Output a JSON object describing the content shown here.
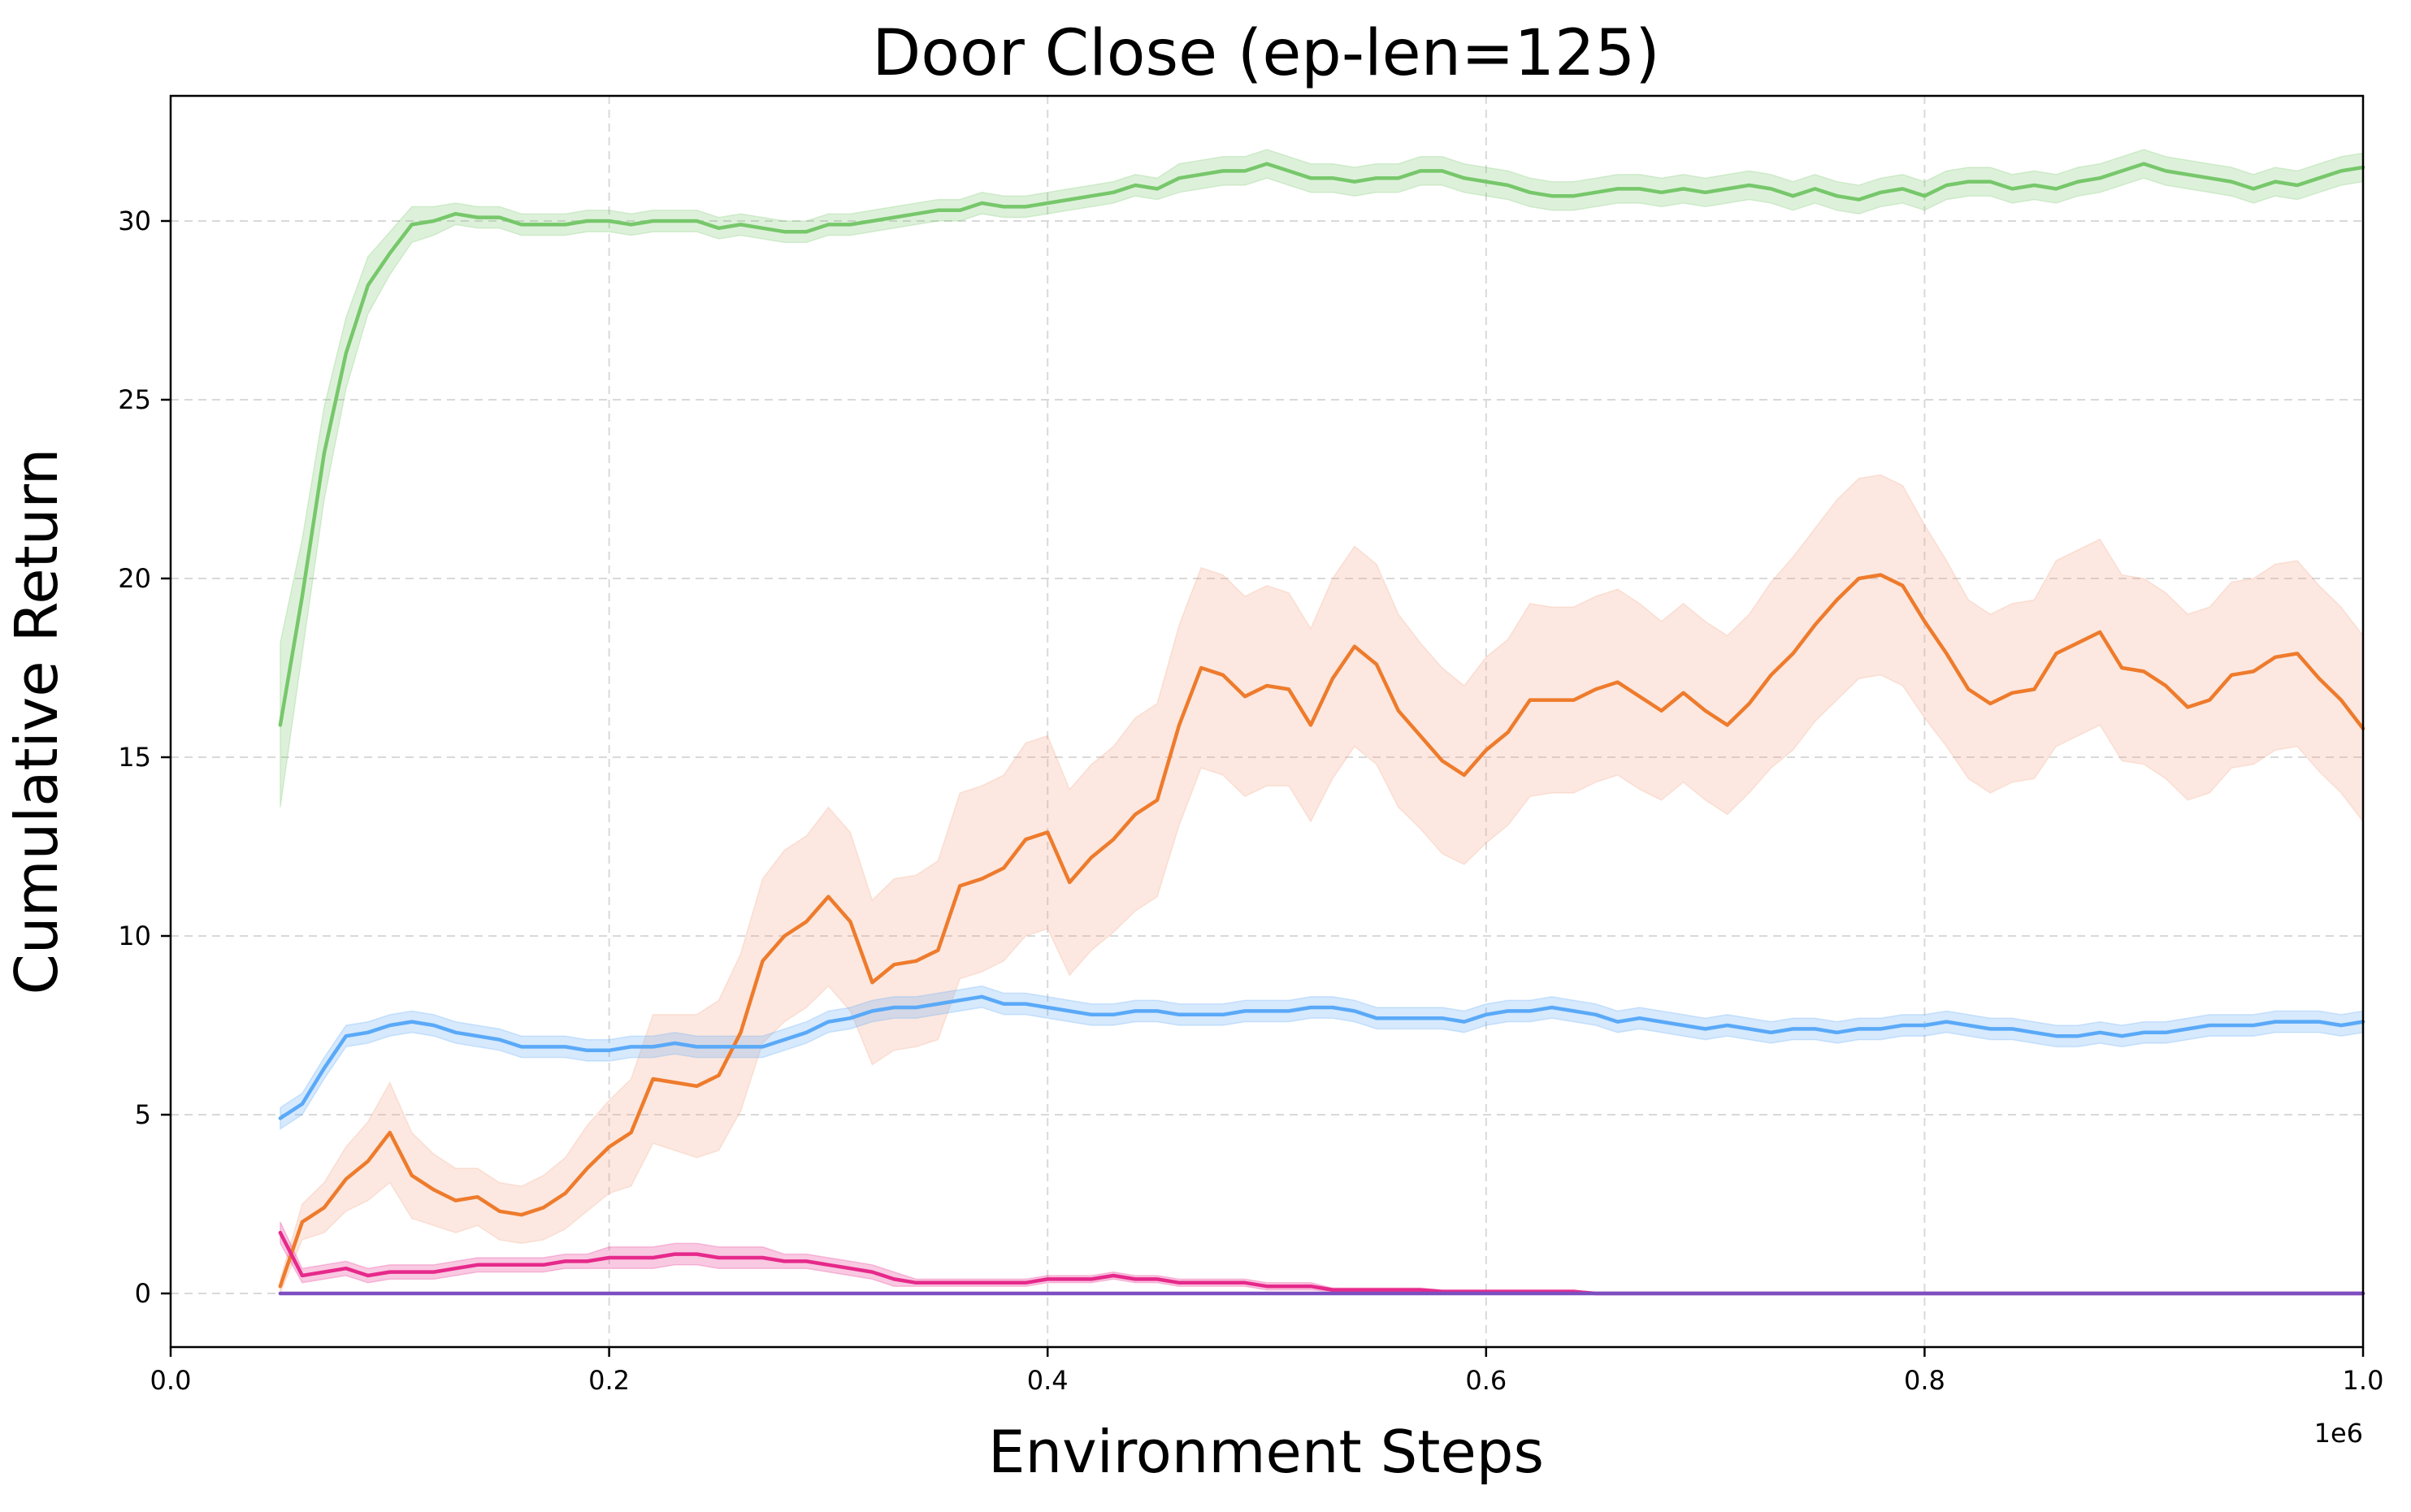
{
  "chart_data": {
    "type": "line",
    "title": "Door Close (ep-len=125)",
    "xlabel": "Environment Steps",
    "ylabel": "Cumulative Return",
    "x_offset_label": "1e6",
    "xlim": [
      0,
      1000000
    ],
    "ylim": [
      -1.5,
      33.5
    ],
    "x_ticks": [
      0,
      200000,
      400000,
      600000,
      800000,
      1000000
    ],
    "x_tick_labels": [
      "0.0",
      "0.2",
      "0.4",
      "0.6",
      "0.8",
      "1.0"
    ],
    "y_ticks": [
      0,
      5,
      10,
      15,
      20,
      25,
      30
    ],
    "y_tick_labels": [
      "0",
      "5",
      "10",
      "15",
      "20",
      "25",
      "30"
    ],
    "grid": true,
    "legend": "none",
    "x": [
      50000,
      60000,
      70000,
      80000,
      90000,
      100000,
      110000,
      120000,
      130000,
      140000,
      150000,
      160000,
      170000,
      180000,
      190000,
      200000,
      210000,
      220000,
      230000,
      240000,
      250000,
      260000,
      270000,
      280000,
      290000,
      300000,
      310000,
      320000,
      330000,
      340000,
      350000,
      360000,
      370000,
      380000,
      390000,
      400000,
      410000,
      420000,
      430000,
      440000,
      450000,
      460000,
      470000,
      480000,
      490000,
      500000,
      510000,
      520000,
      530000,
      540000,
      550000,
      560000,
      570000,
      580000,
      590000,
      600000,
      610000,
      620000,
      630000,
      640000,
      650000,
      660000,
      670000,
      680000,
      690000,
      700000,
      710000,
      720000,
      730000,
      740000,
      750000,
      760000,
      770000,
      780000,
      790000,
      800000,
      810000,
      820000,
      830000,
      840000,
      850000,
      860000,
      870000,
      880000,
      890000,
      900000,
      910000,
      920000,
      930000,
      940000,
      950000,
      960000,
      970000,
      980000,
      990000,
      1000000
    ],
    "series": [
      {
        "color": "#77c76b",
        "band_color": "#77c76b",
        "values": [
          15.9,
          19.5,
          23.5,
          26.3,
          28.2,
          29.1,
          29.9,
          30.0,
          30.2,
          30.1,
          30.1,
          29.9,
          29.9,
          29.9,
          30.0,
          30.0,
          29.9,
          30.0,
          30.0,
          30.0,
          29.8,
          29.9,
          29.8,
          29.7,
          29.7,
          29.9,
          29.9,
          30.0,
          30.1,
          30.2,
          30.3,
          30.3,
          30.5,
          30.4,
          30.4,
          30.5,
          30.6,
          30.7,
          30.8,
          31.0,
          30.9,
          31.2,
          31.3,
          31.4,
          31.4,
          31.6,
          31.4,
          31.2,
          31.2,
          31.1,
          31.2,
          31.2,
          31.4,
          31.4,
          31.2,
          31.1,
          31.0,
          30.8,
          30.7,
          30.7,
          30.8,
          30.9,
          30.9,
          30.8,
          30.9,
          30.8,
          30.9,
          31.0,
          30.9,
          30.7,
          30.9,
          30.7,
          30.6,
          30.8,
          30.9,
          30.7,
          31.0,
          31.1,
          31.1,
          30.9,
          31.0,
          30.9,
          31.1,
          31.2,
          31.4,
          31.6,
          31.4,
          31.3,
          31.2,
          31.1,
          30.9,
          31.1,
          31.0,
          31.2,
          31.4,
          31.5
        ],
        "band_halfwidth": [
          2.3,
          1.6,
          1.3,
          1.0,
          0.8,
          0.6,
          0.5,
          0.4,
          0.3,
          0.3,
          0.3,
          0.3,
          0.3,
          0.3,
          0.3,
          0.3,
          0.3,
          0.3,
          0.3,
          0.3,
          0.3,
          0.3,
          0.3,
          0.3,
          0.3,
          0.3,
          0.3,
          0.3,
          0.3,
          0.3,
          0.3,
          0.3,
          0.3,
          0.3,
          0.3,
          0.3,
          0.3,
          0.3,
          0.3,
          0.3,
          0.3,
          0.4,
          0.4,
          0.4,
          0.4,
          0.4,
          0.4,
          0.4,
          0.4,
          0.4,
          0.4,
          0.4,
          0.4,
          0.4,
          0.4,
          0.4,
          0.4,
          0.4,
          0.4,
          0.4,
          0.4,
          0.4,
          0.4,
          0.4,
          0.4,
          0.4,
          0.4,
          0.4,
          0.4,
          0.4,
          0.4,
          0.4,
          0.4,
          0.4,
          0.4,
          0.4,
          0.4,
          0.4,
          0.4,
          0.4,
          0.4,
          0.4,
          0.4,
          0.4,
          0.4,
          0.4,
          0.4,
          0.4,
          0.4,
          0.4,
          0.4,
          0.4,
          0.4,
          0.4,
          0.4,
          0.4
        ]
      },
      {
        "color": "#ee7b2c",
        "band_color": "#f4a582",
        "values": [
          0.2,
          2.0,
          2.4,
          3.2,
          3.7,
          4.5,
          3.3,
          2.9,
          2.6,
          2.7,
          2.3,
          2.2,
          2.4,
          2.8,
          3.5,
          4.1,
          4.5,
          6.0,
          5.9,
          5.8,
          6.1,
          7.3,
          9.3,
          10.0,
          10.4,
          11.1,
          10.4,
          8.7,
          9.2,
          9.3,
          9.6,
          11.4,
          11.6,
          11.9,
          12.7,
          12.9,
          11.5,
          12.2,
          12.7,
          13.4,
          13.8,
          15.9,
          17.5,
          17.3,
          16.7,
          17.0,
          16.9,
          15.9,
          17.2,
          18.1,
          17.6,
          16.3,
          15.6,
          14.9,
          14.5,
          15.2,
          15.7,
          16.6,
          16.6,
          16.6,
          16.9,
          17.1,
          16.7,
          16.3,
          16.8,
          16.3,
          15.9,
          16.5,
          17.3,
          17.9,
          18.7,
          19.4,
          20.0,
          20.1,
          19.8,
          18.8,
          17.9,
          16.9,
          16.5,
          16.8,
          16.9,
          17.9,
          18.2,
          18.5,
          17.5,
          17.4,
          17.0,
          16.4,
          16.6,
          17.3,
          17.4,
          17.8,
          17.9,
          17.2,
          16.6,
          15.8
        ],
        "band_halfwidth": [
          0.2,
          0.5,
          0.7,
          0.9,
          1.1,
          1.4,
          1.2,
          1.0,
          0.9,
          0.8,
          0.8,
          0.8,
          0.9,
          1.0,
          1.2,
          1.3,
          1.5,
          1.8,
          1.9,
          2.0,
          2.1,
          2.2,
          2.3,
          2.4,
          2.4,
          2.5,
          2.5,
          2.3,
          2.4,
          2.4,
          2.5,
          2.6,
          2.6,
          2.6,
          2.7,
          2.7,
          2.6,
          2.6,
          2.6,
          2.7,
          2.7,
          2.8,
          2.8,
          2.8,
          2.8,
          2.8,
          2.7,
          2.7,
          2.8,
          2.8,
          2.8,
          2.7,
          2.6,
          2.6,
          2.5,
          2.6,
          2.6,
          2.7,
          2.6,
          2.6,
          2.6,
          2.6,
          2.6,
          2.5,
          2.5,
          2.5,
          2.5,
          2.5,
          2.6,
          2.7,
          2.7,
          2.8,
          2.8,
          2.8,
          2.8,
          2.7,
          2.6,
          2.5,
          2.5,
          2.5,
          2.5,
          2.6,
          2.6,
          2.6,
          2.6,
          2.6,
          2.6,
          2.6,
          2.6,
          2.6,
          2.6,
          2.6,
          2.6,
          2.6,
          2.6,
          2.6
        ]
      },
      {
        "color": "#5aa9f8",
        "band_color": "#5aa9f8",
        "values": [
          4.9,
          5.3,
          6.3,
          7.2,
          7.3,
          7.5,
          7.6,
          7.5,
          7.3,
          7.2,
          7.1,
          6.9,
          6.9,
          6.9,
          6.8,
          6.8,
          6.9,
          6.9,
          7.0,
          6.9,
          6.9,
          6.9,
          6.9,
          7.1,
          7.3,
          7.6,
          7.7,
          7.9,
          8.0,
          8.0,
          8.1,
          8.2,
          8.3,
          8.1,
          8.1,
          8.0,
          7.9,
          7.8,
          7.8,
          7.9,
          7.9,
          7.8,
          7.8,
          7.8,
          7.9,
          7.9,
          7.9,
          8.0,
          8.0,
          7.9,
          7.7,
          7.7,
          7.7,
          7.7,
          7.6,
          7.8,
          7.9,
          7.9,
          8.0,
          7.9,
          7.8,
          7.6,
          7.7,
          7.6,
          7.5,
          7.4,
          7.5,
          7.4,
          7.3,
          7.4,
          7.4,
          7.3,
          7.4,
          7.4,
          7.5,
          7.5,
          7.6,
          7.5,
          7.4,
          7.4,
          7.3,
          7.2,
          7.2,
          7.3,
          7.2,
          7.3,
          7.3,
          7.4,
          7.5,
          7.5,
          7.5,
          7.6,
          7.6,
          7.6,
          7.5,
          7.6
        ],
        "band_halfwidth": [
          0.3,
          0.3,
          0.3,
          0.3,
          0.3,
          0.3,
          0.3,
          0.3,
          0.3,
          0.3,
          0.3,
          0.3,
          0.3,
          0.3,
          0.3,
          0.3,
          0.3,
          0.3,
          0.3,
          0.3,
          0.3,
          0.3,
          0.3,
          0.3,
          0.3,
          0.3,
          0.3,
          0.3,
          0.3,
          0.3,
          0.3,
          0.3,
          0.3,
          0.3,
          0.3,
          0.3,
          0.3,
          0.3,
          0.3,
          0.3,
          0.3,
          0.3,
          0.3,
          0.3,
          0.3,
          0.3,
          0.3,
          0.3,
          0.3,
          0.3,
          0.3,
          0.3,
          0.3,
          0.3,
          0.3,
          0.3,
          0.3,
          0.3,
          0.3,
          0.3,
          0.3,
          0.3,
          0.3,
          0.3,
          0.3,
          0.3,
          0.3,
          0.3,
          0.3,
          0.3,
          0.3,
          0.3,
          0.3,
          0.3,
          0.3,
          0.3,
          0.3,
          0.3,
          0.3,
          0.3,
          0.3,
          0.3,
          0.3,
          0.3,
          0.3,
          0.3,
          0.3,
          0.3,
          0.3,
          0.3,
          0.3,
          0.3,
          0.3,
          0.3,
          0.3,
          0.3
        ]
      },
      {
        "color": "#e6298b",
        "band_color": "#e6298b",
        "values": [
          1.7,
          0.5,
          0.6,
          0.7,
          0.5,
          0.6,
          0.6,
          0.6,
          0.7,
          0.8,
          0.8,
          0.8,
          0.8,
          0.9,
          0.9,
          1.0,
          1.0,
          1.0,
          1.1,
          1.1,
          1.0,
          1.0,
          1.0,
          0.9,
          0.9,
          0.8,
          0.7,
          0.6,
          0.4,
          0.3,
          0.3,
          0.3,
          0.3,
          0.3,
          0.3,
          0.4,
          0.4,
          0.4,
          0.5,
          0.4,
          0.4,
          0.3,
          0.3,
          0.3,
          0.3,
          0.2,
          0.2,
          0.2,
          0.1,
          0.1,
          0.1,
          0.1,
          0.1,
          0.05,
          0.05,
          0.05,
          0.05,
          0.05,
          0.05,
          0.05,
          0.0,
          0.0,
          0.0,
          0.0,
          0.0,
          0.0,
          0.0,
          0.0,
          0.0,
          0.0,
          0.0,
          0.0,
          0.0,
          0.0,
          0.0,
          0.0,
          0.0,
          0.0,
          0.0,
          0.0,
          0.0,
          0.0,
          0.0,
          0.0,
          0.0,
          0.0,
          0.0,
          0.0,
          0.0,
          0.0,
          0.0,
          0.0,
          0.0,
          0.0,
          0.0,
          0.0
        ],
        "band_halfwidth": [
          0.3,
          0.2,
          0.2,
          0.2,
          0.2,
          0.2,
          0.2,
          0.2,
          0.2,
          0.2,
          0.2,
          0.2,
          0.2,
          0.2,
          0.2,
          0.3,
          0.3,
          0.3,
          0.3,
          0.3,
          0.3,
          0.3,
          0.3,
          0.2,
          0.2,
          0.2,
          0.2,
          0.2,
          0.2,
          0.1,
          0.1,
          0.1,
          0.1,
          0.1,
          0.1,
          0.1,
          0.1,
          0.1,
          0.1,
          0.1,
          0.1,
          0.1,
          0.1,
          0.1,
          0.1,
          0.1,
          0.1,
          0.1,
          0.05,
          0.05,
          0.05,
          0.05,
          0.05,
          0.05,
          0.05,
          0.05,
          0.05,
          0.05,
          0.05,
          0.05,
          0.0,
          0.0,
          0.0,
          0.0,
          0.0,
          0.0,
          0.0,
          0.0,
          0.0,
          0.0,
          0.0,
          0.0,
          0.0,
          0.0,
          0.0,
          0.0,
          0.0,
          0.0,
          0.0,
          0.0,
          0.0,
          0.0,
          0.0,
          0.0,
          0.0,
          0.0,
          0.0,
          0.0,
          0.0,
          0.0,
          0.0,
          0.0,
          0.0,
          0.0,
          0.0,
          0.0
        ]
      },
      {
        "color": "#7b4fc1",
        "band_color": "#7b4fc1",
        "values": [
          0.0,
          0.0,
          0.0,
          0.0,
          0.0,
          0.0,
          0.0,
          0.0,
          0.0,
          0.0,
          0.0,
          0.0,
          0.0,
          0.0,
          0.0,
          0.0,
          0.0,
          0.0,
          0.0,
          0.0,
          0.0,
          0.0,
          0.0,
          0.0,
          0.0,
          0.0,
          0.0,
          0.0,
          0.0,
          0.0,
          0.0,
          0.0,
          0.0,
          0.0,
          0.0,
          0.0,
          0.0,
          0.0,
          0.0,
          0.0,
          0.0,
          0.0,
          0.0,
          0.0,
          0.0,
          0.0,
          0.0,
          0.0,
          0.0,
          0.0,
          0.0,
          0.0,
          0.0,
          0.0,
          0.0,
          0.0,
          0.0,
          0.0,
          0.0,
          0.0,
          0.0,
          0.0,
          0.0,
          0.0,
          0.0,
          0.0,
          0.0,
          0.0,
          0.0,
          0.0,
          0.0,
          0.0,
          0.0,
          0.0,
          0.0,
          0.0,
          0.0,
          0.0,
          0.0,
          0.0,
          0.0,
          0.0,
          0.0,
          0.0,
          0.0,
          0.0,
          0.0,
          0.0,
          0.0,
          0.0,
          0.0,
          0.0,
          0.0,
          0.0,
          0.0,
          0.0
        ],
        "band_halfwidth": [
          0.0,
          0.0,
          0.0,
          0.0,
          0.0,
          0.0,
          0.0,
          0.0,
          0.0,
          0.0,
          0.0,
          0.0,
          0.0,
          0.0,
          0.0,
          0.0,
          0.0,
          0.0,
          0.0,
          0.0,
          0.0,
          0.0,
          0.0,
          0.0,
          0.0,
          0.0,
          0.0,
          0.0,
          0.0,
          0.0,
          0.0,
          0.0,
          0.0,
          0.0,
          0.0,
          0.0,
          0.0,
          0.0,
          0.0,
          0.0,
          0.0,
          0.0,
          0.0,
          0.0,
          0.0,
          0.0,
          0.0,
          0.0,
          0.0,
          0.0,
          0.0,
          0.0,
          0.0,
          0.0,
          0.0,
          0.0,
          0.0,
          0.0,
          0.0,
          0.0,
          0.0,
          0.0,
          0.0,
          0.0,
          0.0,
          0.0,
          0.0,
          0.0,
          0.0,
          0.0,
          0.0,
          0.0,
          0.0,
          0.0,
          0.0,
          0.0,
          0.0,
          0.0,
          0.0,
          0.0,
          0.0,
          0.0,
          0.0,
          0.0,
          0.0,
          0.0,
          0.0,
          0.0,
          0.0,
          0.0,
          0.0,
          0.0,
          0.0,
          0.0,
          0.0,
          0.0
        ]
      }
    ]
  }
}
